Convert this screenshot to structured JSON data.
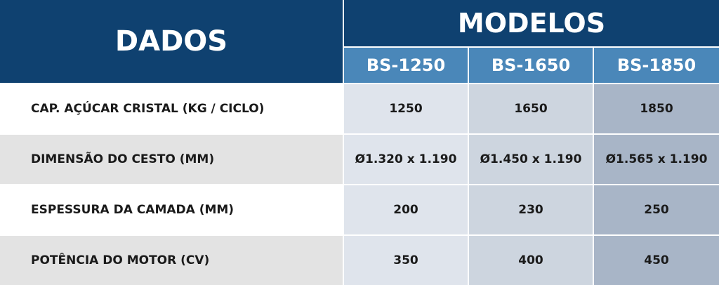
{
  "header": {
    "dados": "DADOS",
    "modelos": "MODELOS",
    "models": [
      "BS-1250",
      "BS-1650",
      "BS-1850"
    ]
  },
  "table": {
    "rows": [
      {
        "label": "CAP. AÇÚCAR CRISTAL (KG / CICLO)",
        "values": [
          1250,
          1650,
          1850
        ]
      },
      {
        "label": "DIMENSÃO DO CESTO (MM)",
        "values": [
          "Ø1.320 x 1.190",
          "Ø1.450 x 1.190",
          "Ø1.565 x 1.190"
        ]
      },
      {
        "label": "ESPESSURA DA CAMADA (MM)",
        "values": [
          200,
          230,
          250
        ]
      },
      {
        "label": "POTÊNCIA DO MOTOR (CV)",
        "values": [
          350,
          400,
          450
        ]
      }
    ]
  }
}
